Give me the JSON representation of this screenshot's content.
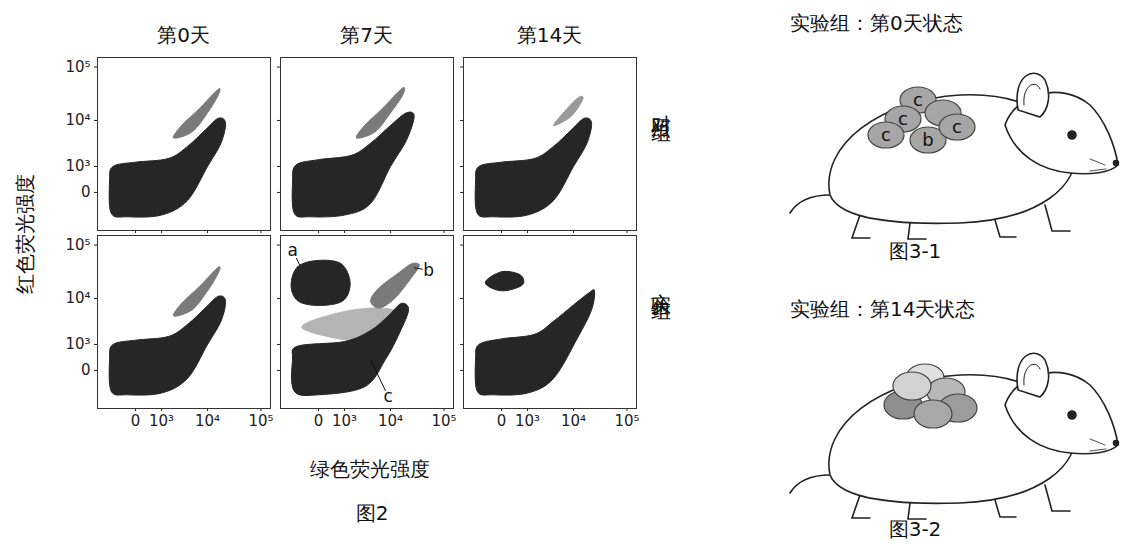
{
  "figure": {
    "caption": "图2",
    "x_label": "绿色荧光强度",
    "y_label": "红色荧光强度",
    "column_titles": [
      "第0天",
      "第7天",
      "第14天"
    ],
    "row_titles": [
      "对照组",
      "实验组"
    ]
  },
  "chart_data": [
    {
      "type": "scatter",
      "log": true,
      "tick_labels": "y",
      "xlim": [
        -2000,
        150000
      ],
      "ylim": [
        -2000,
        150000
      ],
      "xticks": [
        0,
        {
          "value": 1000,
          "label": "10³"
        },
        {
          "value": 10000,
          "label": "10⁴"
        },
        {
          "value": 100000,
          "label": "10⁵"
        }
      ],
      "yticks": [
        0,
        {
          "value": 1000,
          "label": "10³"
        },
        {
          "value": 10000,
          "label": "10⁴"
        },
        {
          "value": 100000,
          "label": "10⁵"
        }
      ],
      "populations": [
        {
          "color": "#262626",
          "outline": [
            [
              -900,
              -700
            ],
            [
              -1000,
              300
            ],
            [
              -800,
              1000
            ],
            [
              0,
              1300
            ],
            [
              1500,
              1600
            ],
            [
              4000,
              3000
            ],
            [
              9000,
              6500
            ],
            [
              16000,
              11000
            ],
            [
              22000,
              9000
            ],
            [
              18000,
              3500
            ],
            [
              10000,
              1000
            ],
            [
              4000,
              -200
            ],
            [
              1000,
              -800
            ],
            [
              -200,
              -900
            ]
          ]
        },
        {
          "color": "#7a7a7a",
          "outline": [
            [
              2000,
              4500
            ],
            [
              3000,
              8000
            ],
            [
              7000,
              17000
            ],
            [
              13000,
              32000
            ],
            [
              17000,
              40000
            ],
            [
              16000,
              30000
            ],
            [
              10000,
              14000
            ],
            [
              5000,
              6000
            ]
          ]
        }
      ]
    },
    {
      "type": "scatter",
      "log": true,
      "tick_labels": false,
      "xlim": [
        -2000,
        150000
      ],
      "ylim": [
        -2000,
        150000
      ],
      "xticks": [
        0,
        {
          "value": 1000,
          "label": "10³"
        },
        {
          "value": 10000,
          "label": "10⁴"
        },
        {
          "value": 100000,
          "label": "10⁵"
        }
      ],
      "yticks": [
        0,
        {
          "value": 1000,
          "label": "10³"
        },
        {
          "value": 10000,
          "label": "10⁴"
        },
        {
          "value": 100000,
          "label": "10⁵"
        }
      ],
      "populations": [
        {
          "color": "#262626",
          "outline": [
            [
              -900,
              -700
            ],
            [
              -1000,
              300
            ],
            [
              -800,
              1100
            ],
            [
              0,
              1500
            ],
            [
              1500,
              1900
            ],
            [
              4000,
              3500
            ],
            [
              10000,
              8000
            ],
            [
              20000,
              14000
            ],
            [
              28000,
              12000
            ],
            [
              20000,
              4000
            ],
            [
              10000,
              1000
            ],
            [
              4000,
              -300
            ],
            [
              1000,
              -800
            ],
            [
              -200,
              -900
            ]
          ]
        },
        {
          "color": "#7a7a7a",
          "outline": [
            [
              2000,
              4500
            ],
            [
              3000,
              8000
            ],
            [
              7000,
              17000
            ],
            [
              13000,
              32000
            ],
            [
              18000,
              42000
            ],
            [
              17000,
              30000
            ],
            [
              10000,
              14000
            ],
            [
              5000,
              6000
            ]
          ]
        }
      ]
    },
    {
      "type": "scatter",
      "log": true,
      "tick_labels": false,
      "xlim": [
        -2000,
        150000
      ],
      "ylim": [
        -2000,
        150000
      ],
      "xticks": [
        0,
        {
          "value": 1000,
          "label": "10³"
        },
        {
          "value": 10000,
          "label": "10⁴"
        },
        {
          "value": 100000,
          "label": "10⁵"
        }
      ],
      "yticks": [
        0,
        {
          "value": 1000,
          "label": "10³"
        },
        {
          "value": 10000,
          "label": "10⁴"
        },
        {
          "value": 100000,
          "label": "10⁵"
        }
      ],
      "populations": [
        {
          "color": "#262626",
          "outline": [
            [
              -900,
              -700
            ],
            [
              -1000,
              300
            ],
            [
              -800,
              1000
            ],
            [
              0,
              1300
            ],
            [
              1500,
              1600
            ],
            [
              4000,
              3000
            ],
            [
              9000,
              6500
            ],
            [
              16000,
              11000
            ],
            [
              22000,
              9000
            ],
            [
              18000,
              3500
            ],
            [
              10000,
              1000
            ],
            [
              4000,
              -200
            ],
            [
              1000,
              -800
            ],
            [
              -200,
              -900
            ]
          ]
        },
        {
          "color": "#9a9a9a",
          "outline": [
            [
              4000,
              8000
            ],
            [
              8000,
              18000
            ],
            [
              13000,
              28000
            ],
            [
              15000,
              25000
            ],
            [
              9000,
              12000
            ]
          ]
        }
      ]
    },
    {
      "type": "scatter",
      "log": true,
      "tick_labels": true,
      "xlim": [
        -2000,
        150000
      ],
      "ylim": [
        -2000,
        150000
      ],
      "xticks": [
        0,
        {
          "value": 1000,
          "label": "10³"
        },
        {
          "value": 10000,
          "label": "10⁴"
        },
        {
          "value": 100000,
          "label": "10⁵"
        }
      ],
      "yticks": [
        0,
        {
          "value": 1000,
          "label": "10³"
        },
        {
          "value": 10000,
          "label": "10⁴"
        },
        {
          "value": 100000,
          "label": "10⁵"
        }
      ],
      "populations": [
        {
          "color": "#262626",
          "outline": [
            [
              -900,
              -700
            ],
            [
              -1000,
              300
            ],
            [
              -800,
              1000
            ],
            [
              0,
              1300
            ],
            [
              1500,
              1600
            ],
            [
              4000,
              3000
            ],
            [
              9000,
              6500
            ],
            [
              16000,
              11000
            ],
            [
              22000,
              9000
            ],
            [
              18000,
              3500
            ],
            [
              10000,
              1000
            ],
            [
              4000,
              -200
            ],
            [
              1000,
              -800
            ],
            [
              -200,
              -900
            ]
          ]
        },
        {
          "color": "#7a7a7a",
          "outline": [
            [
              2000,
              4500
            ],
            [
              3000,
              8000
            ],
            [
              7000,
              17000
            ],
            [
              13000,
              32000
            ],
            [
              17000,
              40000
            ],
            [
              16000,
              30000
            ],
            [
              10000,
              14000
            ],
            [
              5000,
              6000
            ]
          ]
        }
      ]
    },
    {
      "type": "scatter",
      "log": true,
      "tick_labels": "x",
      "xlim": [
        -2000,
        150000
      ],
      "ylim": [
        -2000,
        150000
      ],
      "xticks": [
        0,
        {
          "value": 1000,
          "label": "10³"
        },
        {
          "value": 10000,
          "label": "10⁴"
        },
        {
          "value": 100000,
          "label": "10⁵"
        }
      ],
      "yticks": [
        0,
        {
          "value": 1000,
          "label": "10³"
        },
        {
          "value": 10000,
          "label": "10⁴"
        },
        {
          "value": 100000,
          "label": "10⁵"
        }
      ],
      "populations": [
        {
          "color": "#b4b4b4",
          "outline": [
            [
              -500,
              2500
            ],
            [
              500,
              5000
            ],
            [
              5000,
              6500
            ],
            [
              15000,
              5000
            ],
            [
              12000,
              1500
            ],
            [
              2000,
              1200
            ]
          ]
        },
        {
          "color": "#262626",
          "outline": [
            [
              -900,
              -700
            ],
            [
              -1000,
              300
            ],
            [
              -700,
              900
            ],
            [
              1000,
              1200
            ],
            [
              4000,
              2200
            ],
            [
              9000,
              4500
            ],
            [
              16000,
              8000
            ],
            [
              22000,
              6000
            ],
            [
              15000,
              2000
            ],
            [
              8000,
              300
            ],
            [
              3000,
              -500
            ],
            [
              0,
              -900
            ]
          ]
        },
        {
          "color": "#7a7a7a",
          "outline": [
            [
              4000,
              9000
            ],
            [
              6000,
              16000
            ],
            [
              14000,
              30000
            ],
            [
              25000,
              45000
            ],
            [
              35000,
              42000
            ],
            [
              25000,
              25000
            ],
            [
              12000,
              10000
            ],
            [
              6000,
              6500
            ]
          ]
        },
        {
          "color": "#262626",
          "outline": [
            [
              -1100,
              18000
            ],
            [
              -700,
              40000
            ],
            [
              0,
              52000
            ],
            [
              800,
              45000
            ],
            [
              1400,
              20000
            ],
            [
              900,
              9000
            ],
            [
              0,
              7300
            ],
            [
              -700,
              9000
            ]
          ]
        }
      ],
      "annotations": [
        {
          "text": "a",
          "x": -1000,
          "y": 80000,
          "point": [
            -600,
            42000
          ]
        },
        {
          "text": "b",
          "x": 52000,
          "y": 34000,
          "point": [
            28000,
            38000
          ]
        },
        {
          "text": "c",
          "x": 9000,
          "y": -1000,
          "point": [
            4000,
            300
          ]
        }
      ]
    },
    {
      "type": "scatter",
      "log": true,
      "tick_labels": "x",
      "xlim": [
        -2000,
        150000
      ],
      "ylim": [
        -2000,
        150000
      ],
      "xticks": [
        0,
        {
          "value": 1000,
          "label": "10³"
        },
        {
          "value": 10000,
          "label": "10⁴"
        },
        {
          "value": 100000,
          "label": "10⁵"
        }
      ],
      "yticks": [
        0,
        {
          "value": 1000,
          "label": "10³"
        },
        {
          "value": 10000,
          "label": "10⁴"
        },
        {
          "value": 100000,
          "label": "10⁵"
        }
      ],
      "populations": [
        {
          "color": "#262626",
          "outline": [
            [
              -900,
              -700
            ],
            [
              -1000,
              300
            ],
            [
              -800,
              1000
            ],
            [
              0,
              1400
            ],
            [
              1500,
              1800
            ],
            [
              4000,
              3500
            ],
            [
              10000,
              7500
            ],
            [
              20000,
              13000
            ],
            [
              25000,
              14000
            ],
            [
              22000,
              6000
            ],
            [
              12000,
              1500
            ],
            [
              4000,
              -200
            ],
            [
              1000,
              -800
            ],
            [
              -200,
              -900
            ]
          ]
        },
        {
          "color": "#262626",
          "outline": [
            [
              -500,
              20000
            ],
            [
              0,
              32000
            ],
            [
              600,
              28000
            ],
            [
              700,
              18000
            ],
            [
              0,
              14000
            ]
          ]
        }
      ]
    }
  ],
  "diagrams": [
    {
      "title": "实验组：第0天状态",
      "caption": "图3-1",
      "cell_labels": [
        "c",
        "c",
        "c",
        "b",
        "c"
      ]
    },
    {
      "title": "实验组：第14天状态",
      "caption": "图3-2"
    }
  ]
}
